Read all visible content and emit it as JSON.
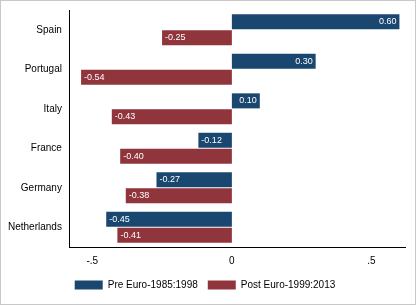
{
  "chart_data": {
    "type": "bar",
    "orientation": "horizontal",
    "categories": [
      "Spain",
      "Portugal",
      "Italy",
      "France",
      "Germany",
      "Netherlands"
    ],
    "series": [
      {
        "name": "Pre Euro-1985:1998",
        "color": "#1a476f",
        "values": [
          0.6,
          0.3,
          0.1,
          -0.12,
          -0.27,
          -0.45
        ],
        "value_labels": [
          "0.60",
          "0.30",
          "0.10",
          "-0.12",
          "-0.27",
          "-0.45"
        ]
      },
      {
        "name": "Post Euro-1999:2013",
        "color": "#90353b",
        "values": [
          -0.25,
          -0.54,
          -0.43,
          -0.4,
          -0.38,
          -0.41
        ],
        "value_labels": [
          "-0.25",
          "-0.54",
          "-0.43",
          "-0.40",
          "-0.38",
          "-0.41"
        ]
      }
    ],
    "xlim": [
      -0.58,
      0.62
    ],
    "xticks": [
      {
        "value": -0.5,
        "label": "-.5"
      },
      0,
      {
        "value": 0.5,
        "label": ".5"
      }
    ],
    "grid": false,
    "legend": "bottom",
    "data_labels": true
  }
}
